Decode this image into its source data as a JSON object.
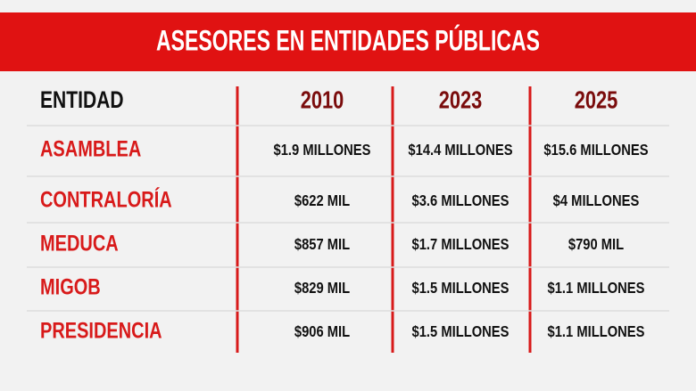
{
  "title": "ASESORES EN ENTIDADES PÚBLICAS",
  "table": {
    "header": [
      "ENTIDAD",
      "2010",
      "2023",
      "2025"
    ],
    "rows": [
      [
        "ASAMBLEA",
        "$1.9 MILLONES",
        "$14.4 MILLONES",
        "$15.6 MILLONES"
      ],
      [
        "CONTRALORÍA",
        "$622 MIL",
        "$3.6 MILLONES",
        "$4 MILLONES"
      ],
      [
        "MEDUCA",
        "$857 MIL",
        "$1.7 MILLONES",
        "$790 MIL"
      ],
      [
        "MIGOB",
        "$829 MIL",
        "$1.5 MILLONES",
        "$1.1 MILLONES"
      ],
      [
        "PRESIDENCIA",
        "$906 MIL",
        "$1.5 MILLONES",
        "$1.1 MILLONES"
      ]
    ]
  }
}
